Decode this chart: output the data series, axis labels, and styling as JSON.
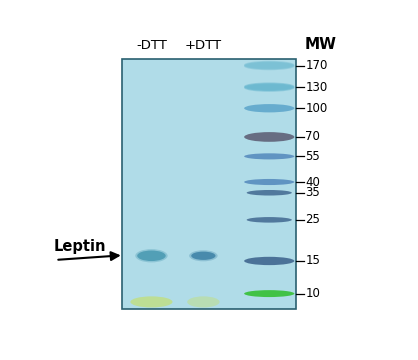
{
  "fig_width": 4.18,
  "fig_height": 3.6,
  "dpi": 100,
  "bg_color": "#ffffff",
  "gel_bg_color": "#b0dce8",
  "gel_border_color": "#2a6070",
  "title_neg_dtt": "-DTT",
  "title_pos_dtt": "+DTT",
  "title_mw": "MW",
  "mw_markers": [
    170,
    130,
    100,
    70,
    55,
    40,
    35,
    25,
    15,
    10
  ],
  "leptin_mw": 16,
  "header_fontsize": 9.5,
  "mw_fontsize": 8.5,
  "leptin_fontsize": 10.5,
  "band_neg_dtt_color": "#4a9ab2",
  "band_pos_dtt_color": "#3a80a5",
  "mw_band_colors": {
    "170": "#7ac0d5",
    "130": "#6ab8d0",
    "100": "#55a0c8",
    "70": "#606080",
    "55": "#4a80b8",
    "40": "#4a80b8",
    "35": "#3a608a",
    "25": "#3a608a",
    "15": "#3a608a",
    "10": "#30b040"
  },
  "green_band_color": "#38c038",
  "bottom_yellow_green": "#c8e050"
}
